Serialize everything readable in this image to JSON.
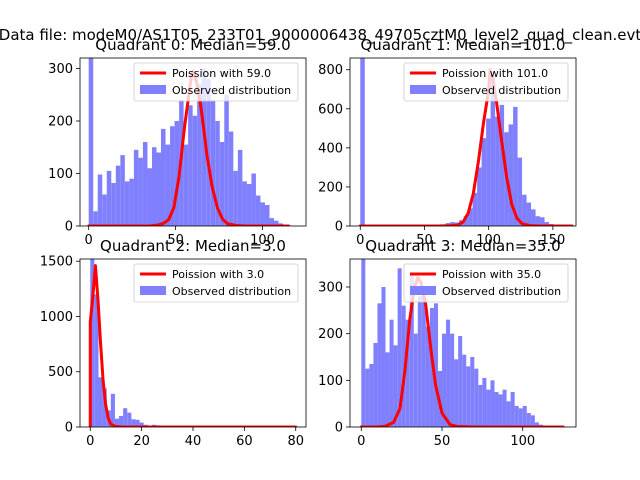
{
  "figure": {
    "suptitle": "Data file: modeM0/AS1T05_233T01_9000006438_49705cztM0_level2_quad_clean.evt"
  },
  "colors": {
    "hist": "#8080ff",
    "pdf": "#ff0000",
    "pdf_light": "#ff8080"
  },
  "legend": {
    "observed_label": "Observed distribution"
  },
  "chart_data": [
    {
      "type": "bar",
      "title": "Quadrant 0: Median=59.0",
      "pdf_label": "Poission with 59.0",
      "mu": 59,
      "xlim": [
        -5,
        125
      ],
      "ylim": [
        0,
        320
      ],
      "xticks": [
        0,
        50,
        100
      ],
      "yticks": [
        0,
        100,
        200,
        300
      ],
      "bin_start": 0,
      "bin_width": 2.6,
      "values": [
        320,
        28,
        98,
        60,
        105,
        82,
        115,
        135,
        85,
        90,
        145,
        130,
        160,
        110,
        150,
        140,
        185,
        155,
        190,
        200,
        240,
        155,
        230,
        210,
        270,
        300,
        280,
        240,
        200,
        160,
        250,
        180,
        105,
        145,
        85,
        80,
        100,
        58,
        45,
        40,
        15,
        10,
        5,
        0,
        0,
        0,
        0
      ],
      "pdf_x": [
        35,
        40,
        43,
        46,
        49,
        52,
        55,
        58,
        59,
        60,
        62,
        64,
        66,
        68,
        71,
        74,
        77,
        80,
        85,
        90,
        100,
        115
      ],
      "pdf_y": [
        0,
        2,
        5,
        12,
        35,
        95,
        185,
        260,
        283,
        295,
        275,
        240,
        190,
        135,
        75,
        35,
        13,
        4,
        1,
        0,
        0,
        0
      ],
      "pdf_x_start": 0,
      "pdf_x_end": 115
    },
    {
      "type": "bar",
      "title": "Quadrant 1: Median=101.0",
      "pdf_label": "Poission with 101.0",
      "mu": 101,
      "xlim": [
        -8,
        168
      ],
      "ylim": [
        0,
        860
      ],
      "xticks": [
        0,
        50,
        100,
        150
      ],
      "yticks": [
        0,
        200,
        400,
        600,
        800
      ],
      "bin_start": 0,
      "bin_width": 3.5,
      "values": [
        860,
        2,
        2,
        2,
        2,
        2,
        2,
        2,
        2,
        2,
        2,
        2,
        2,
        2,
        2,
        3,
        3,
        5,
        8,
        15,
        20,
        18,
        30,
        50,
        90,
        170,
        300,
        450,
        550,
        770,
        560,
        620,
        480,
        520,
        610,
        350,
        160,
        120,
        85,
        50,
        45,
        20,
        10,
        5,
        3,
        2,
        2
      ],
      "pdf_x": [
        60,
        70,
        76,
        80,
        84,
        88,
        92,
        96,
        100,
        101,
        103,
        106,
        110,
        114,
        118,
        122,
        126,
        132,
        140,
        150,
        160,
        165
      ],
      "pdf_y": [
        0,
        1,
        5,
        20,
        65,
        165,
        330,
        530,
        695,
        800,
        760,
        640,
        440,
        250,
        110,
        40,
        12,
        2,
        0,
        0,
        0,
        0
      ],
      "pdf_x_start": 0,
      "pdf_x_end": 165
    },
    {
      "type": "bar",
      "title": "Quadrant 2: Median=3.0",
      "pdf_label": "Poission with 3.0",
      "mu": 3,
      "xlim": [
        -4,
        84
      ],
      "ylim": [
        0,
        1520
      ],
      "xticks": [
        0,
        20,
        40,
        60,
        80
      ],
      "yticks": [
        0,
        500,
        1000,
        1500
      ],
      "bin_start": 0,
      "bin_width": 1.6,
      "values": [
        1520,
        1200,
        450,
        350,
        150,
        300,
        75,
        100,
        170,
        130,
        70,
        65,
        40,
        20,
        10,
        20,
        15,
        5,
        5,
        3,
        0,
        0,
        0,
        0,
        0,
        0,
        0,
        0,
        0,
        0,
        0,
        0,
        0,
        0,
        0,
        0,
        0,
        0,
        0,
        0,
        0,
        0,
        0,
        0,
        0,
        0,
        0,
        0,
        0,
        0
      ],
      "pdf_x": [
        0,
        1,
        2,
        3,
        4,
        5,
        6,
        7,
        8,
        10,
        12,
        14,
        20,
        30,
        50,
        80
      ],
      "pdf_y": [
        950,
        1180,
        1460,
        1150,
        760,
        420,
        200,
        80,
        25,
        5,
        1,
        0,
        0,
        0,
        0,
        0
      ],
      "pdf_x_start": 0,
      "pdf_x_end": 80
    },
    {
      "type": "bar",
      "title": "Quadrant 3: Median=35.0",
      "pdf_label": "Poission with 35.0",
      "mu": 35,
      "xlim": [
        -7,
        133
      ],
      "ylim": [
        0,
        360
      ],
      "xticks": [
        0,
        50,
        100
      ],
      "yticks": [
        0,
        100,
        200,
        300
      ],
      "bin_start": 0,
      "bin_width": 2.5,
      "values": [
        360,
        125,
        135,
        180,
        265,
        300,
        160,
        230,
        175,
        340,
        260,
        230,
        330,
        200,
        280,
        300,
        215,
        255,
        265,
        120,
        200,
        230,
        200,
        145,
        195,
        155,
        130,
        150,
        125,
        90,
        105,
        80,
        100,
        75,
        70,
        80,
        55,
        75,
        45,
        40,
        45,
        30,
        25,
        10,
        5,
        3
      ],
      "pdf_x": [
        0,
        10,
        15,
        20,
        24,
        27,
        30,
        33,
        35,
        37,
        40,
        43,
        46,
        50,
        55,
        60,
        70,
        90,
        125
      ],
      "pdf_y": [
        0,
        0,
        2,
        10,
        40,
        120,
        230,
        300,
        320,
        310,
        260,
        170,
        90,
        30,
        5,
        1,
        0,
        0,
        0
      ],
      "pdf_x_start": 0,
      "pdf_x_end": 125
    }
  ]
}
